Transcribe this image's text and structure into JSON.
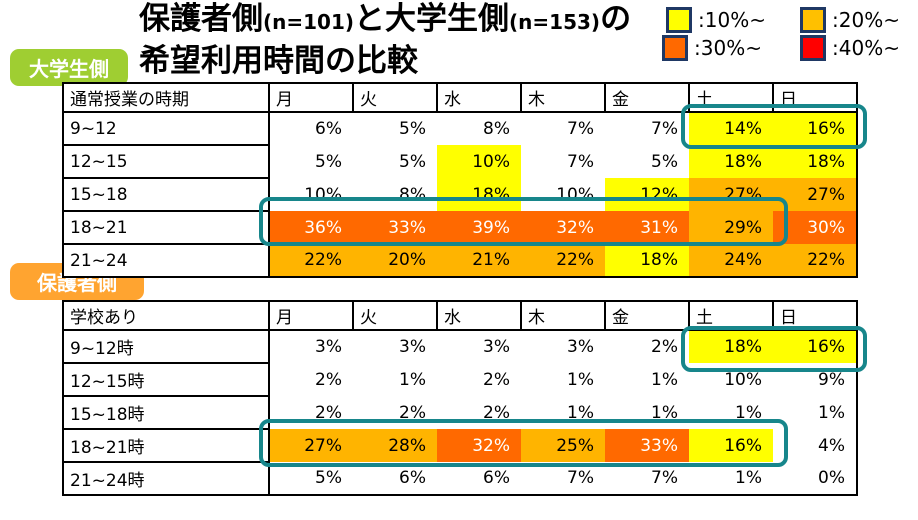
{
  "slide": {
    "title": {
      "seg1": "保護者側",
      "n1": "(n=101)",
      "seg2": "と大学生側",
      "n2": "(n=153)",
      "seg3": "の",
      "line2": "希望利用時間の比較"
    },
    "badge_students": "大学生側",
    "badge_parents": "保護者側"
  },
  "legend": {
    "items": [
      {
        "label": ":10%~",
        "color": "#FFFF00"
      },
      {
        "label": ":20%~",
        "color": "#FFC000"
      },
      {
        "label": ":30%~",
        "color": "#FF6900"
      },
      {
        "label": ":40%~",
        "color": "#FF0000"
      }
    ],
    "swatch_border_color": "#1F3864"
  },
  "colors": {
    "fill_map": {
      "W": "#FFFFFF",
      "Y": "#FFFF00",
      "A": "#FFB400",
      "O": "#FF6900",
      "R": "#FF0000"
    },
    "white_text_fills": [
      "O",
      "R"
    ],
    "highlight_outline": "#17868B",
    "badge_students_bg": "#9FCE32",
    "badge_parents_bg": "#FFA430"
  },
  "chart_data": [
    {
      "type": "heatmap",
      "group": "大学生側",
      "n": 153,
      "corner_label": "通常授業の時期",
      "columns": [
        "月",
        "火",
        "水",
        "木",
        "金",
        "土",
        "日"
      ],
      "rows": [
        "9~12",
        "12~15",
        "15~18",
        "18~21",
        "21~24"
      ],
      "values": [
        [
          "6%",
          "5%",
          "8%",
          "7%",
          "7%",
          "14%",
          "16%"
        ],
        [
          "5%",
          "5%",
          "10%",
          "7%",
          "5%",
          "18%",
          "18%"
        ],
        [
          "10%",
          "8%",
          "18%",
          "10%",
          "12%",
          "27%",
          "27%"
        ],
        [
          "36%",
          "33%",
          "39%",
          "32%",
          "31%",
          "29%",
          "30%"
        ],
        [
          "22%",
          "20%",
          "21%",
          "22%",
          "18%",
          "24%",
          "22%"
        ]
      ],
      "fills": [
        [
          "W",
          "W",
          "W",
          "W",
          "W",
          "Y",
          "Y"
        ],
        [
          "W",
          "W",
          "Y",
          "W",
          "W",
          "Y",
          "Y"
        ],
        [
          "W",
          "W",
          "Y",
          "W",
          "Y",
          "A",
          "A"
        ],
        [
          "O",
          "O",
          "O",
          "O",
          "O",
          "A",
          "O"
        ],
        [
          "A",
          "A",
          "A",
          "A",
          "Y",
          "A",
          "A"
        ]
      ],
      "highlights": [
        {
          "row": "9~12",
          "columns": [
            "土",
            "日"
          ]
        },
        {
          "row": "18~21",
          "columns": [
            "月",
            "火",
            "水",
            "木",
            "金",
            "土"
          ]
        }
      ]
    },
    {
      "type": "heatmap",
      "group": "保護者側",
      "n": 101,
      "corner_label": "学校あり",
      "columns": [
        "月",
        "火",
        "水",
        "木",
        "金",
        "土",
        "日"
      ],
      "rows": [
        "9~12時",
        "12~15時",
        "15~18時",
        "18~21時",
        "21~24時"
      ],
      "values": [
        [
          "3%",
          "3%",
          "3%",
          "3%",
          "2%",
          "18%",
          "16%"
        ],
        [
          "2%",
          "1%",
          "2%",
          "1%",
          "1%",
          "10%",
          "9%"
        ],
        [
          "2%",
          "2%",
          "2%",
          "1%",
          "1%",
          "1%",
          "1%"
        ],
        [
          "27%",
          "28%",
          "32%",
          "25%",
          "33%",
          "16%",
          "4%"
        ],
        [
          "5%",
          "6%",
          "6%",
          "7%",
          "7%",
          "1%",
          "0%"
        ]
      ],
      "fills": [
        [
          "W",
          "W",
          "W",
          "W",
          "W",
          "Y",
          "Y"
        ],
        [
          "W",
          "W",
          "W",
          "W",
          "W",
          "W",
          "W"
        ],
        [
          "W",
          "W",
          "W",
          "W",
          "W",
          "W",
          "W"
        ],
        [
          "A",
          "A",
          "O",
          "A",
          "O",
          "Y",
          "W"
        ],
        [
          "W",
          "W",
          "W",
          "W",
          "W",
          "W",
          "W"
        ]
      ],
      "highlights": [
        {
          "row": "9~12時",
          "columns": [
            "土",
            "日"
          ]
        },
        {
          "row": "18~21時",
          "columns": [
            "月",
            "火",
            "水",
            "木",
            "金",
            "土"
          ]
        }
      ]
    }
  ]
}
